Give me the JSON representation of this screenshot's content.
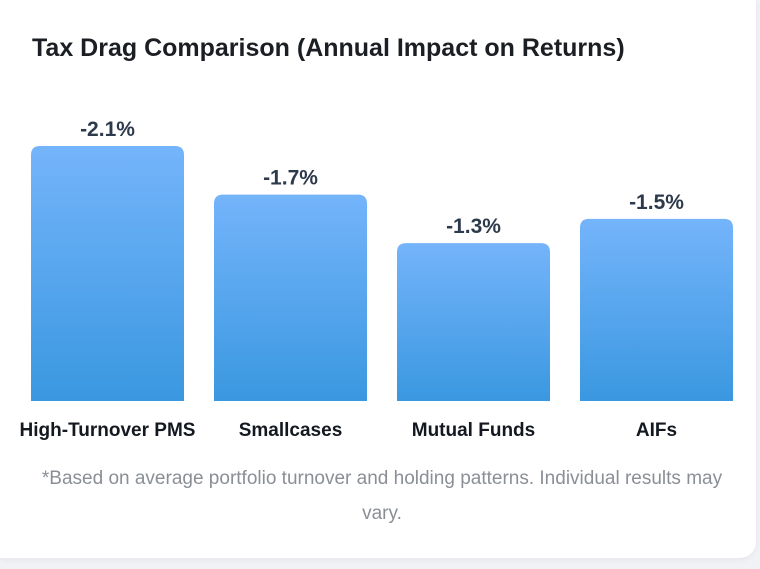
{
  "chart_data": {
    "type": "bar",
    "title": "Tax Drag Comparison (Annual Impact on Returns)",
    "categories": [
      "High-Turnover PMS",
      "Smallcases",
      "Mutual Funds",
      "AIFs"
    ],
    "values": [
      -2.1,
      -1.7,
      -1.3,
      -1.5
    ],
    "value_labels": [
      "-2.1%",
      "-1.7%",
      "-1.3%",
      "-1.5%"
    ],
    "xlabel": "",
    "ylabel": "",
    "ylim": [
      0,
      -2.1
    ],
    "grid": false,
    "legend": "none",
    "bar_color_top": "#74b4fb",
    "bar_color_bottom": "#3a98e0"
  },
  "footnote": "*Based on average portfolio turnover and holding patterns. Individual results may vary."
}
